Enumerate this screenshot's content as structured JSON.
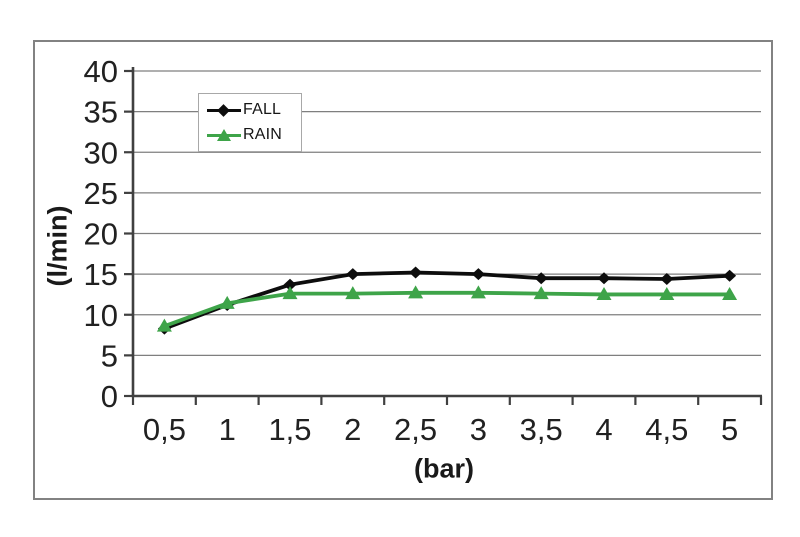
{
  "chart_data": {
    "type": "line",
    "title": "",
    "xlabel": "(bar)",
    "ylabel": "(l/min)",
    "categories": [
      "0,5",
      "1",
      "1,5",
      "2",
      "2,5",
      "3",
      "3,5",
      "4",
      "4,5",
      "5"
    ],
    "x_values": [
      0.5,
      1,
      1.5,
      2,
      2.5,
      3,
      3.5,
      4,
      4.5,
      5
    ],
    "y_ticks": [
      0,
      5,
      10,
      15,
      20,
      25,
      30,
      35,
      40
    ],
    "ylim": [
      0,
      40
    ],
    "grid": "horizontal",
    "legend_position": "top-left-inside",
    "decimal_separator": ",",
    "series": [
      {
        "name": "FALL",
        "marker": "diamond",
        "color": "#0d0d0d",
        "values": [
          8.3,
          11.2,
          13.7,
          15.0,
          15.2,
          15.0,
          14.5,
          14.5,
          14.4,
          14.8
        ]
      },
      {
        "name": "RAIN",
        "marker": "triangle",
        "color": "#3ea449",
        "values": [
          8.6,
          11.4,
          12.6,
          12.6,
          12.7,
          12.7,
          12.6,
          12.5,
          12.5,
          12.5
        ]
      }
    ],
    "colors": {
      "gridline": "#7f7f7f",
      "axis": "#404040",
      "frame_border": "#828282",
      "background": "#ffffff"
    }
  }
}
